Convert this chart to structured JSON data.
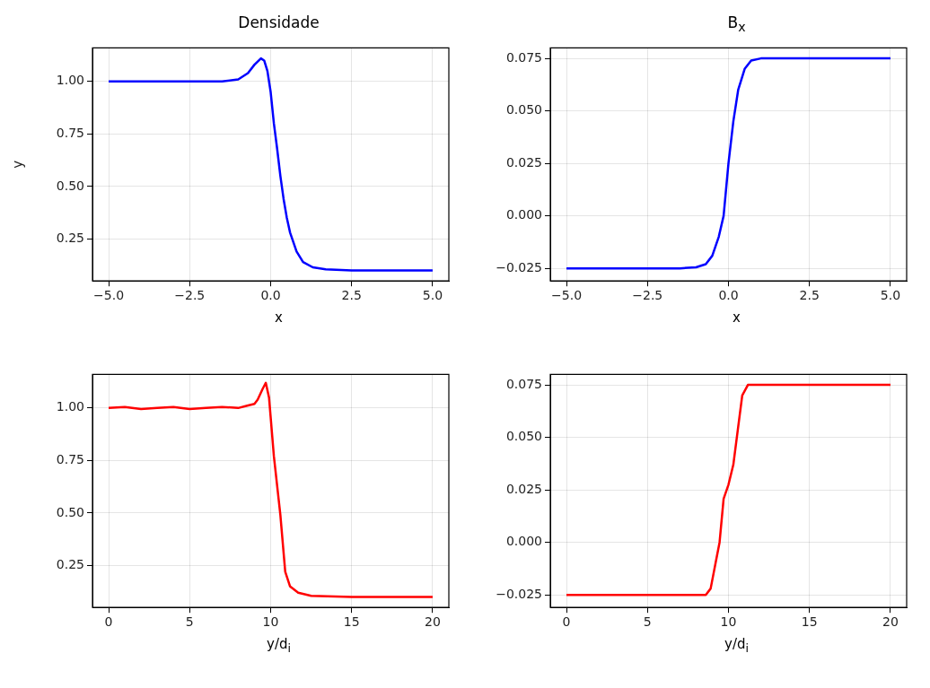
{
  "chart_data": [
    {
      "type": "line",
      "title": "Densidade",
      "xlabel": "x",
      "ylabel": "y",
      "grid": true,
      "marker": "none",
      "line_style": "solid",
      "xlim": [
        -5.5,
        5.5
      ],
      "xticks": [
        {
          "value": -5,
          "label": "−5.0"
        },
        {
          "value": -2.5,
          "label": "−2.5"
        },
        {
          "value": 0,
          "label": "0.0"
        },
        {
          "value": 2.5,
          "label": "2.5"
        },
        {
          "value": 5,
          "label": "5.0"
        }
      ],
      "ylim": [
        0.05,
        1.16
      ],
      "yticks": [
        {
          "value": 0.25,
          "label": "0.25"
        },
        {
          "value": 0.5,
          "label": "0.50"
        },
        {
          "value": 0.75,
          "label": "0.75"
        },
        {
          "value": 1,
          "label": "1.00"
        }
      ],
      "series": [
        {
          "color": "#0000ff",
          "x": [
            -5,
            -2.5,
            -1.5,
            -1,
            -0.7,
            -0.5,
            -0.3,
            -0.2,
            -0.1,
            0,
            0.1,
            0.2,
            0.3,
            0.4,
            0.5,
            0.6,
            0.8,
            1,
            1.3,
            1.7,
            2.5,
            5
          ],
          "values": [
            1,
            1,
            1,
            1.01,
            1.04,
            1.08,
            1.11,
            1.1,
            1.05,
            0.95,
            0.8,
            0.68,
            0.55,
            0.44,
            0.35,
            0.28,
            0.19,
            0.14,
            0.115,
            0.105,
            0.1,
            0.1
          ]
        }
      ]
    },
    {
      "type": "line",
      "title": "B$_{x}$",
      "xlabel": "x",
      "grid": true,
      "marker": "none",
      "line_style": "solid",
      "xlim": [
        -5.5,
        5.5
      ],
      "xticks": [
        {
          "value": -5,
          "label": "−5.0"
        },
        {
          "value": -2.5,
          "label": "−2.5"
        },
        {
          "value": 0,
          "label": "0.0"
        },
        {
          "value": 2.5,
          "label": "2.5"
        },
        {
          "value": 5,
          "label": "5.0"
        }
      ],
      "ylim": [
        -0.031,
        0.08
      ],
      "yticks": [
        {
          "value": -0.025,
          "label": "−0.025"
        },
        {
          "value": 0,
          "label": "0.000"
        },
        {
          "value": 0.025,
          "label": "0.025"
        },
        {
          "value": 0.05,
          "label": "0.050"
        },
        {
          "value": 0.075,
          "label": "0.075"
        }
      ],
      "series": [
        {
          "color": "#0000ff",
          "x": [
            -5,
            -1.5,
            -1,
            -0.7,
            -0.5,
            -0.3,
            -0.15,
            0,
            0.15,
            0.3,
            0.5,
            0.7,
            1,
            5
          ],
          "values": [
            -0.025,
            -0.025,
            -0.0245,
            -0.023,
            -0.019,
            -0.01,
            0,
            0.025,
            0.045,
            0.06,
            0.07,
            0.074,
            0.075,
            0.075
          ]
        }
      ]
    },
    {
      "type": "line",
      "xlabel": "y/d$_{i}$",
      "grid": true,
      "marker": "none",
      "line_style": "solid",
      "xlim": [
        -1,
        21
      ],
      "xticks": [
        0,
        5,
        10,
        15,
        20
      ],
      "ylim": [
        0.05,
        1.16
      ],
      "yticks": [
        {
          "value": 0.25,
          "label": "0.25"
        },
        {
          "value": 0.5,
          "label": "0.50"
        },
        {
          "value": 0.75,
          "label": "0.75"
        },
        {
          "value": 1,
          "label": "1.00"
        }
      ],
      "series": [
        {
          "color": "#ff0000",
          "x": [
            0,
            1,
            2,
            3,
            4,
            5,
            6,
            7,
            8,
            8.5,
            9,
            9.2,
            9.5,
            9.7,
            9.9,
            10.2,
            10.6,
            10.9,
            11.2,
            11.7,
            12.5,
            15,
            20
          ],
          "values": [
            1,
            1.005,
            0.995,
            1,
            1.005,
            0.995,
            1,
            1.005,
            1,
            1.01,
            1.02,
            1.04,
            1.09,
            1.12,
            1.05,
            0.77,
            0.49,
            0.22,
            0.15,
            0.12,
            0.105,
            0.1,
            0.1
          ]
        }
      ]
    },
    {
      "type": "line",
      "xlabel": "y/d$_{i}$",
      "grid": true,
      "marker": "none",
      "line_style": "solid",
      "xlim": [
        -1,
        21
      ],
      "xticks": [
        0,
        5,
        10,
        15,
        20
      ],
      "ylim": [
        -0.031,
        0.08
      ],
      "yticks": [
        {
          "value": -0.025,
          "label": "−0.025"
        },
        {
          "value": 0,
          "label": "0.000"
        },
        {
          "value": 0.025,
          "label": "0.025"
        },
        {
          "value": 0.05,
          "label": "0.050"
        },
        {
          "value": 0.075,
          "label": "0.075"
        }
      ],
      "series": [
        {
          "color": "#ff0000",
          "x": [
            0,
            8.6,
            8.9,
            9.2,
            9.45,
            9.7,
            10,
            10.3,
            10.6,
            10.85,
            11.2,
            11.7,
            20
          ],
          "values": [
            -0.025,
            -0.025,
            -0.022,
            -0.01,
            0,
            0.0207,
            0.0275,
            0.037,
            0.055,
            0.07,
            0.075,
            0.075,
            0.075
          ]
        }
      ]
    }
  ]
}
